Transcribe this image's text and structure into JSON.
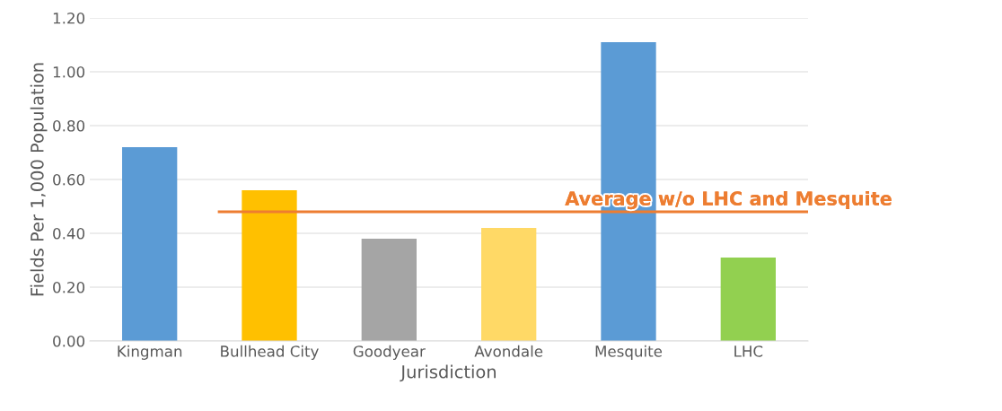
{
  "chart_data": {
    "type": "bar",
    "xlabel": "Jurisdiction",
    "ylabel": "Fields Per 1,000 Population",
    "categories": [
      "Kingman",
      "Bullhead City",
      "Goodyear",
      "Avondale",
      "Mesquite",
      "LHC"
    ],
    "values": [
      0.72,
      0.56,
      0.38,
      0.42,
      1.11,
      0.31
    ],
    "colors": [
      "#5b9bd5",
      "#ffc000",
      "#a5a5a5",
      "#ffd966",
      "#5b9bd5",
      "#92d050"
    ],
    "ylim": [
      0,
      1.2
    ],
    "yticks": [
      {
        "value": 0,
        "label": "0.00"
      },
      {
        "value": 0.2,
        "label": "0.20"
      },
      {
        "value": 0.4,
        "label": "0.40"
      },
      {
        "value": 0.6,
        "label": "0.60"
      },
      {
        "value": 0.8,
        "label": "0.80"
      },
      {
        "value": 1.0,
        "label": "1.00"
      },
      {
        "value": 1.2,
        "label": "1.20"
      }
    ],
    "grid": "y",
    "ref_lines": [
      {
        "axis": "y",
        "value": 0.48,
        "label": "Average w/o LHC and Mesquite",
        "color": "#ed7d31"
      }
    ]
  }
}
